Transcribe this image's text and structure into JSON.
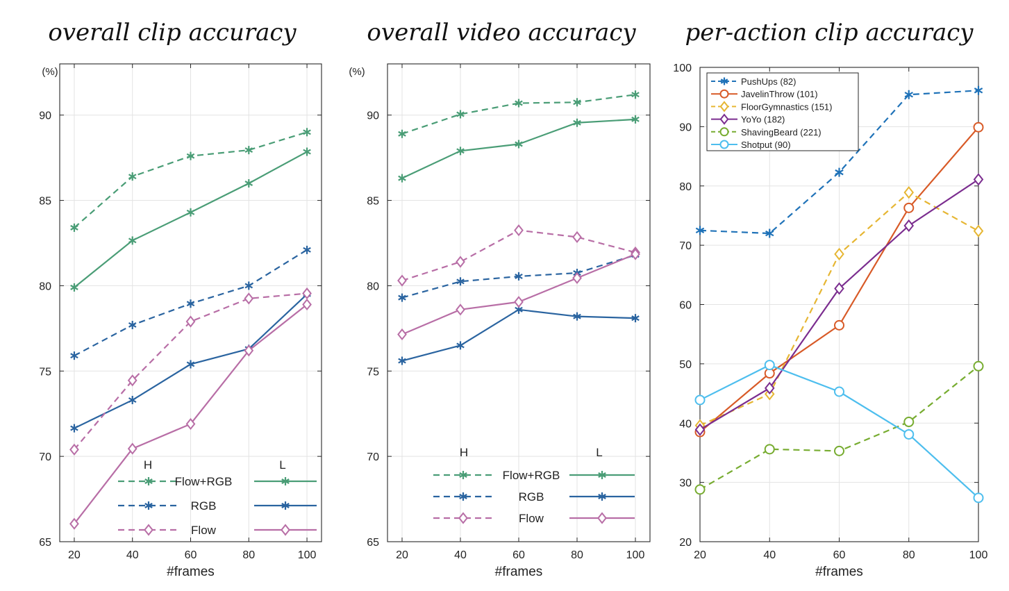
{
  "colors": {
    "green": "#4a9d76",
    "blue": "#2a64a0",
    "pink": "#b86ea6",
    "pushups": "#1f72b8",
    "javelin": "#d85a27",
    "floor": "#e6b633",
    "yoyo": "#7b2d8f",
    "shaving": "#77ac30",
    "shotput": "#4dbeee"
  },
  "chart_data": [
    {
      "type": "line",
      "title": "overall clip accuracy",
      "xlabel": "#frames",
      "ylabel": "",
      "unit_label": "(%)",
      "x": [
        20,
        40,
        60,
        80,
        100
      ],
      "xlim": [
        15,
        105
      ],
      "ylim": [
        65,
        93
      ],
      "yticks": [
        65,
        70,
        75,
        80,
        85,
        90
      ],
      "grid": true,
      "legend_headers": [
        "H",
        "L"
      ],
      "legend_rows": [
        "Flow+RGB",
        "RGB",
        "Flow"
      ],
      "legend_placement": "bottom-right",
      "series": [
        {
          "row": "Flow+RGB",
          "col": "H",
          "color": "green",
          "dash": true,
          "marker": "asterisk",
          "values": [
            83.4,
            86.4,
            87.6,
            87.95,
            89.0
          ]
        },
        {
          "row": "Flow+RGB",
          "col": "L",
          "color": "green",
          "dash": false,
          "marker": "asterisk",
          "values": [
            79.9,
            82.65,
            84.3,
            86.0,
            87.85
          ]
        },
        {
          "row": "RGB",
          "col": "H",
          "color": "blue",
          "dash": true,
          "marker": "asterisk",
          "values": [
            75.9,
            77.7,
            78.95,
            80.0,
            82.1
          ]
        },
        {
          "row": "RGB",
          "col": "L",
          "color": "blue",
          "dash": false,
          "marker": "asterisk",
          "values": [
            71.65,
            73.3,
            75.4,
            76.3,
            79.5
          ]
        },
        {
          "row": "Flow",
          "col": "H",
          "color": "pink",
          "dash": true,
          "marker": "diamond",
          "values": [
            70.4,
            74.45,
            77.9,
            79.25,
            79.55
          ]
        },
        {
          "row": "Flow",
          "col": "L",
          "color": "pink",
          "dash": false,
          "marker": "diamond",
          "values": [
            66.05,
            70.45,
            71.9,
            76.2,
            78.9
          ]
        }
      ]
    },
    {
      "type": "line",
      "title": "overall video accuracy",
      "xlabel": "#frames",
      "ylabel": "",
      "unit_label": "(%)",
      "x": [
        20,
        40,
        60,
        80,
        100
      ],
      "xlim": [
        15,
        105
      ],
      "ylim": [
        65,
        93
      ],
      "yticks": [
        65,
        70,
        75,
        80,
        85,
        90
      ],
      "grid": true,
      "legend_headers": [
        "H",
        "L"
      ],
      "legend_rows": [
        "Flow+RGB",
        "RGB",
        "Flow"
      ],
      "legend_placement": "bottom-right",
      "series": [
        {
          "row": "Flow+RGB",
          "col": "H",
          "color": "green",
          "dash": true,
          "marker": "asterisk",
          "values": [
            88.9,
            90.05,
            90.7,
            90.75,
            91.2
          ]
        },
        {
          "row": "Flow+RGB",
          "col": "L",
          "color": "green",
          "dash": false,
          "marker": "asterisk",
          "values": [
            86.3,
            87.9,
            88.3,
            89.55,
            89.75
          ]
        },
        {
          "row": "RGB",
          "col": "H",
          "color": "blue",
          "dash": true,
          "marker": "asterisk",
          "values": [
            79.3,
            80.25,
            80.55,
            80.75,
            81.8
          ]
        },
        {
          "row": "RGB",
          "col": "L",
          "color": "blue",
          "dash": false,
          "marker": "asterisk",
          "values": [
            75.6,
            76.5,
            78.6,
            78.2,
            78.1
          ]
        },
        {
          "row": "Flow",
          "col": "H",
          "color": "pink",
          "dash": true,
          "marker": "diamond",
          "values": [
            80.3,
            81.4,
            83.25,
            82.85,
            81.95
          ]
        },
        {
          "row": "Flow",
          "col": "L",
          "color": "pink",
          "dash": false,
          "marker": "diamond",
          "values": [
            77.15,
            78.6,
            79.05,
            80.45,
            81.85
          ]
        }
      ]
    },
    {
      "type": "line",
      "title": "per-action clip accuracy",
      "xlabel": "#frames",
      "ylabel": "",
      "x": [
        20,
        40,
        60,
        80,
        100
      ],
      "xlim": [
        20,
        100
      ],
      "ylim": [
        20,
        100
      ],
      "yticks": [
        20,
        30,
        40,
        50,
        60,
        70,
        80,
        90,
        100
      ],
      "grid": true,
      "legend_placement": "top-left",
      "series": [
        {
          "name": "PushUps (82)",
          "color": "pushups",
          "dash": true,
          "marker": "asterisk",
          "values": [
            72.5,
            72.0,
            82.3,
            95.4,
            96.1
          ]
        },
        {
          "name": "JavelinThrow (101)",
          "color": "javelin",
          "dash": false,
          "marker": "circle",
          "values": [
            38.5,
            48.4,
            56.5,
            76.3,
            89.9
          ]
        },
        {
          "name": "FloorGymnastics (151)",
          "color": "floor",
          "dash": true,
          "marker": "diamond",
          "values": [
            39.6,
            44.9,
            68.5,
            78.9,
            72.4
          ]
        },
        {
          "name": "YoYo (182)",
          "color": "yoyo",
          "dash": false,
          "marker": "diamond",
          "values": [
            38.9,
            45.9,
            62.7,
            73.3,
            81.1
          ]
        },
        {
          "name": "ShavingBeard (221)",
          "color": "shaving",
          "dash": true,
          "marker": "circle",
          "values": [
            28.8,
            35.6,
            35.3,
            40.2,
            49.6
          ]
        },
        {
          "name": "Shotput (90)",
          "color": "shotput",
          "dash": false,
          "marker": "circle",
          "values": [
            43.9,
            49.8,
            45.3,
            38.1,
            27.4
          ]
        }
      ]
    }
  ]
}
